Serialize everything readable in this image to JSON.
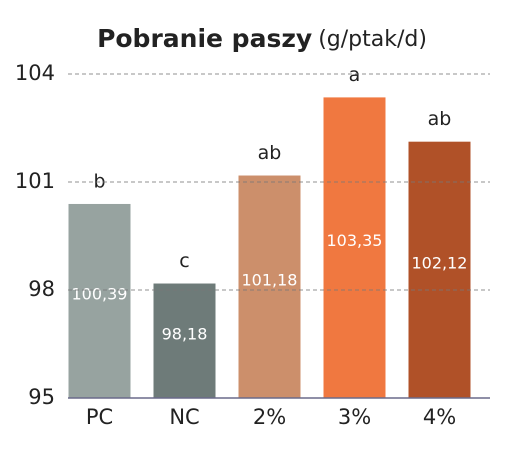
{
  "chart_data": {
    "type": "bar",
    "title": "Pobranie paszy",
    "subtitle": "(g/ptak/d)",
    "categories": [
      "PC",
      "NC",
      "2%",
      "3%",
      "4%"
    ],
    "values": [
      100.39,
      98.18,
      101.18,
      103.35,
      102.12
    ],
    "value_labels": [
      "100,39",
      "98,18",
      "101,18",
      "103,35",
      "102,12"
    ],
    "letters": [
      "b",
      "c",
      "ab",
      "a",
      "ab"
    ],
    "colors": [
      "#97a3a0",
      "#6e7b79",
      "#cc8f6b",
      "#f07840",
      "#b05128"
    ],
    "ylim": [
      95,
      104
    ],
    "yticks": [
      95,
      98,
      101,
      104
    ],
    "grid": true
  }
}
